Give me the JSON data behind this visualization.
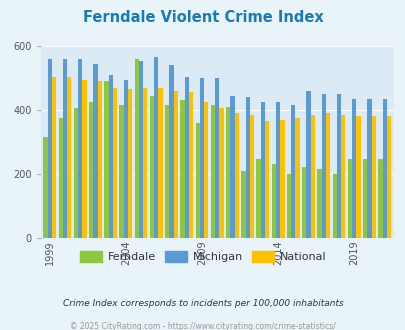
{
  "title": "Ferndale Violent Crime Index",
  "years": [
    1999,
    2000,
    2001,
    2002,
    2003,
    2004,
    2005,
    2006,
    2007,
    2008,
    2009,
    2010,
    2011,
    2012,
    2013,
    2014,
    2015,
    2016,
    2017,
    2018,
    2019,
    2020,
    2021
  ],
  "ferndale": [
    315,
    375,
    405,
    425,
    490,
    415,
    560,
    445,
    415,
    430,
    360,
    415,
    410,
    210,
    245,
    230,
    200,
    220,
    215,
    200,
    245,
    245,
    245
  ],
  "michigan": [
    560,
    560,
    560,
    545,
    510,
    495,
    555,
    565,
    540,
    505,
    500,
    500,
    445,
    440,
    425,
    425,
    415,
    460,
    450,
    450,
    435,
    435,
    435
  ],
  "national": [
    505,
    505,
    495,
    490,
    470,
    465,
    470,
    470,
    460,
    455,
    425,
    405,
    390,
    385,
    365,
    370,
    375,
    385,
    390,
    385,
    380,
    380,
    380
  ],
  "ferndale_color": "#8dc63f",
  "michigan_color": "#5b9bd5",
  "national_color": "#ffc000",
  "bg_color": "#e8f4f8",
  "plot_bg": "#dbeaf4",
  "ylim": [
    0,
    600
  ],
  "yticks": [
    0,
    200,
    400,
    600
  ],
  "subtitle": "Crime Index corresponds to incidents per 100,000 inhabitants",
  "footer": "© 2025 CityRating.com - https://www.cityrating.com/crime-statistics/",
  "title_color": "#1a7ab5",
  "subtitle_color": "#333333",
  "footer_color": "#999999",
  "legend_labels": [
    "Ferndale",
    "Michigan",
    "National"
  ],
  "tick_years": [
    1999,
    2004,
    2009,
    2014,
    2019
  ]
}
